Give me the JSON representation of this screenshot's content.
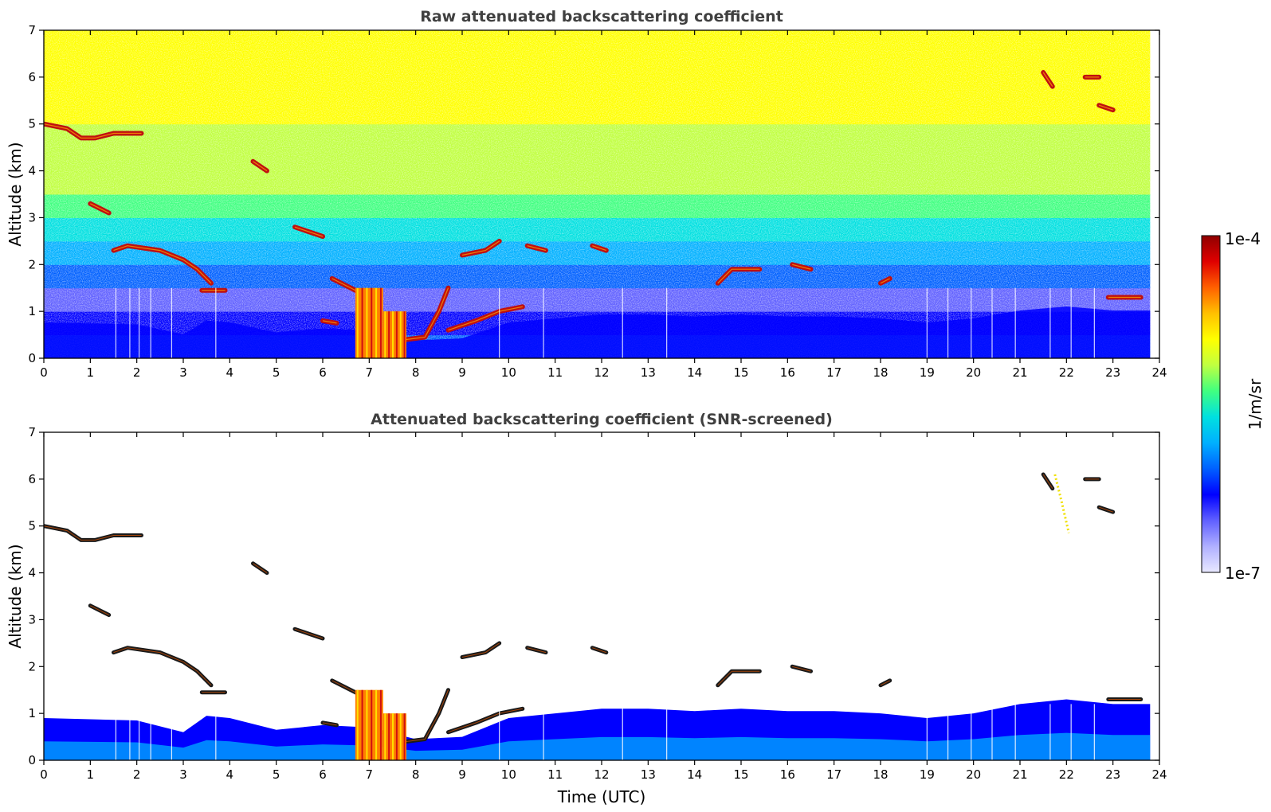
{
  "chart_data": [
    {
      "type": "heatmap",
      "title": "Raw attenuated backscattering coefficient",
      "xlabel": "",
      "ylabel": "Altitude (km)",
      "xlim": [
        0,
        24
      ],
      "ylim": [
        0,
        7
      ],
      "x_ticks": [
        "0",
        "1",
        "2",
        "3",
        "4",
        "5",
        "6",
        "7",
        "8",
        "9",
        "10",
        "11",
        "12",
        "13",
        "14",
        "15",
        "16",
        "17",
        "18",
        "19",
        "20",
        "21",
        "22",
        "23",
        "24"
      ],
      "y_ticks": [
        "0",
        "1",
        "2",
        "3",
        "4",
        "5",
        "6",
        "7"
      ],
      "data_end_hour": 23.8,
      "features": [
        {
          "kind": "cloud_layer",
          "points": [
            [
              0.0,
              5.0
            ],
            [
              0.5,
              4.9
            ],
            [
              0.8,
              4.7
            ],
            [
              1.1,
              4.7
            ],
            [
              1.5,
              4.8
            ],
            [
              2.1,
              4.8
            ]
          ]
        },
        {
          "kind": "cloud_layer",
          "points": [
            [
              1.5,
              2.3
            ],
            [
              1.8,
              2.4
            ],
            [
              2.5,
              2.3
            ],
            [
              3.0,
              2.1
            ],
            [
              3.3,
              1.9
            ],
            [
              3.6,
              1.6
            ]
          ]
        },
        {
          "kind": "cloud_layer",
          "points": [
            [
              1.0,
              3.3
            ],
            [
              1.4,
              3.1
            ]
          ]
        },
        {
          "kind": "cloud_layer",
          "points": [
            [
              4.5,
              4.2
            ],
            [
              4.8,
              4.0
            ]
          ]
        },
        {
          "kind": "cloud_layer",
          "points": [
            [
              5.4,
              2.8
            ],
            [
              5.7,
              2.7
            ],
            [
              6.0,
              2.6
            ]
          ]
        },
        {
          "kind": "cloud_layer",
          "points": [
            [
              3.4,
              1.45
            ],
            [
              3.9,
              1.45
            ]
          ]
        },
        {
          "kind": "cloud_layer",
          "points": [
            [
              6.2,
              1.7
            ],
            [
              6.8,
              1.4
            ]
          ]
        },
        {
          "kind": "cloud_layer",
          "points": [
            [
              6.0,
              0.8
            ],
            [
              6.3,
              0.75
            ]
          ]
        },
        {
          "kind": "cloud_layer",
          "points": [
            [
              7.3,
              0.6
            ],
            [
              7.8,
              0.4
            ],
            [
              8.2,
              0.45
            ],
            [
              8.5,
              1.0
            ],
            [
              8.7,
              1.5
            ]
          ]
        },
        {
          "kind": "cloud_layer",
          "points": [
            [
              8.7,
              0.6
            ],
            [
              9.3,
              0.8
            ],
            [
              9.8,
              1.0
            ],
            [
              10.3,
              1.1
            ]
          ]
        },
        {
          "kind": "cloud_layer",
          "points": [
            [
              9.0,
              2.2
            ],
            [
              9.5,
              2.3
            ],
            [
              9.8,
              2.5
            ]
          ]
        },
        {
          "kind": "cloud_layer",
          "points": [
            [
              10.4,
              2.4
            ],
            [
              10.8,
              2.3
            ]
          ]
        },
        {
          "kind": "cloud_layer",
          "points": [
            [
              11.8,
              2.4
            ],
            [
              12.1,
              2.3
            ]
          ]
        },
        {
          "kind": "cloud_layer",
          "points": [
            [
              14.5,
              1.6
            ],
            [
              14.8,
              1.9
            ],
            [
              15.4,
              1.9
            ]
          ]
        },
        {
          "kind": "cloud_layer",
          "points": [
            [
              16.1,
              2.0
            ],
            [
              16.5,
              1.9
            ]
          ]
        },
        {
          "kind": "cloud_layer",
          "points": [
            [
              18.0,
              1.6
            ],
            [
              18.2,
              1.7
            ]
          ]
        },
        {
          "kind": "cloud_layer",
          "points": [
            [
              21.5,
              6.1
            ],
            [
              21.7,
              5.8
            ]
          ]
        },
        {
          "kind": "cloud_layer",
          "points": [
            [
              22.4,
              6.0
            ],
            [
              22.7,
              6.0
            ]
          ]
        },
        {
          "kind": "cloud_layer",
          "points": [
            [
              22.7,
              5.4
            ],
            [
              23.0,
              5.3
            ]
          ]
        },
        {
          "kind": "cloud_layer",
          "points": [
            [
              22.9,
              1.3
            ],
            [
              23.6,
              1.3
            ]
          ]
        },
        {
          "kind": "dense_column",
          "x0": 6.7,
          "x1": 7.3,
          "top": 1.5
        },
        {
          "kind": "dense_column",
          "x0": 7.3,
          "x1": 7.8,
          "top": 1.0
        }
      ]
    },
    {
      "type": "heatmap",
      "title": "Attenuated backscattering coefficient (SNR-screened)",
      "xlabel": "Time (UTC)",
      "ylabel": "Altitude (km)",
      "xlim": [
        0,
        24
      ],
      "ylim": [
        0,
        7
      ],
      "x_ticks": [
        "0",
        "1",
        "2",
        "3",
        "4",
        "5",
        "6",
        "7",
        "8",
        "9",
        "10",
        "11",
        "12",
        "13",
        "14",
        "15",
        "16",
        "17",
        "18",
        "19",
        "20",
        "21",
        "22",
        "23",
        "24"
      ],
      "y_ticks": [
        "0",
        "1",
        "2",
        "3",
        "4",
        "5",
        "6",
        "7"
      ],
      "boundary_layer_top": [
        [
          0,
          0.9
        ],
        [
          2,
          0.85
        ],
        [
          3,
          0.6
        ],
        [
          3.5,
          0.95
        ],
        [
          4,
          0.9
        ],
        [
          5,
          0.65
        ],
        [
          6,
          0.75
        ],
        [
          7,
          0.7
        ],
        [
          8,
          0.45
        ],
        [
          9,
          0.5
        ],
        [
          10,
          0.9
        ],
        [
          11,
          1.0
        ],
        [
          12,
          1.1
        ],
        [
          13,
          1.1
        ],
        [
          14,
          1.05
        ],
        [
          15,
          1.1
        ],
        [
          16,
          1.05
        ],
        [
          17,
          1.05
        ],
        [
          18,
          1.0
        ],
        [
          19,
          0.9
        ],
        [
          20,
          1.0
        ],
        [
          21,
          1.2
        ],
        [
          22,
          1.3
        ],
        [
          23,
          1.2
        ],
        [
          23.8,
          1.2
        ]
      ]
    }
  ],
  "colorbar": {
    "label": "1/m/sr",
    "max_label": "1e-4",
    "min_label": "1e-7",
    "range": [
      1e-07,
      0.0001
    ],
    "scale": "log",
    "colors": [
      "#e8e8ff",
      "#b0b0ff",
      "#6060ff",
      "#0000ff",
      "#0060ff",
      "#00b0ff",
      "#00e0e0",
      "#40ff80",
      "#c0ff40",
      "#ffff00",
      "#ffc000",
      "#ff6000",
      "#e00000",
      "#900000"
    ]
  }
}
